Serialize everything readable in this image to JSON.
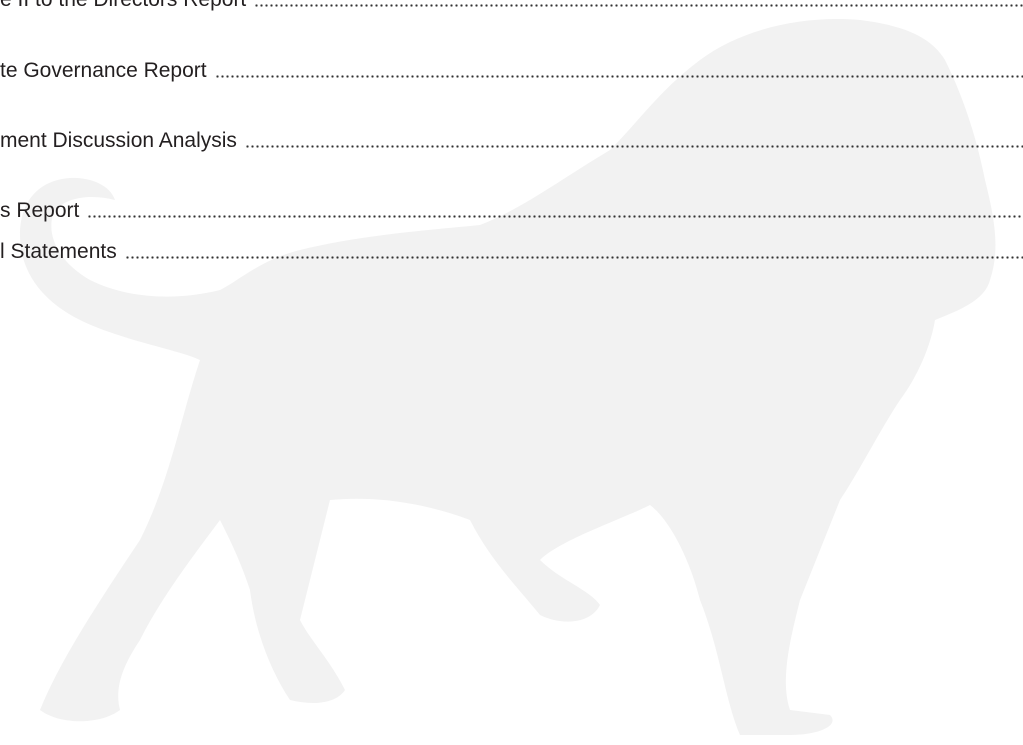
{
  "toc": {
    "entries": [
      "e II to the Directors Report",
      "te Governance Report",
      "ment Discussion Analysis",
      "s Report",
      "l Statements"
    ]
  }
}
